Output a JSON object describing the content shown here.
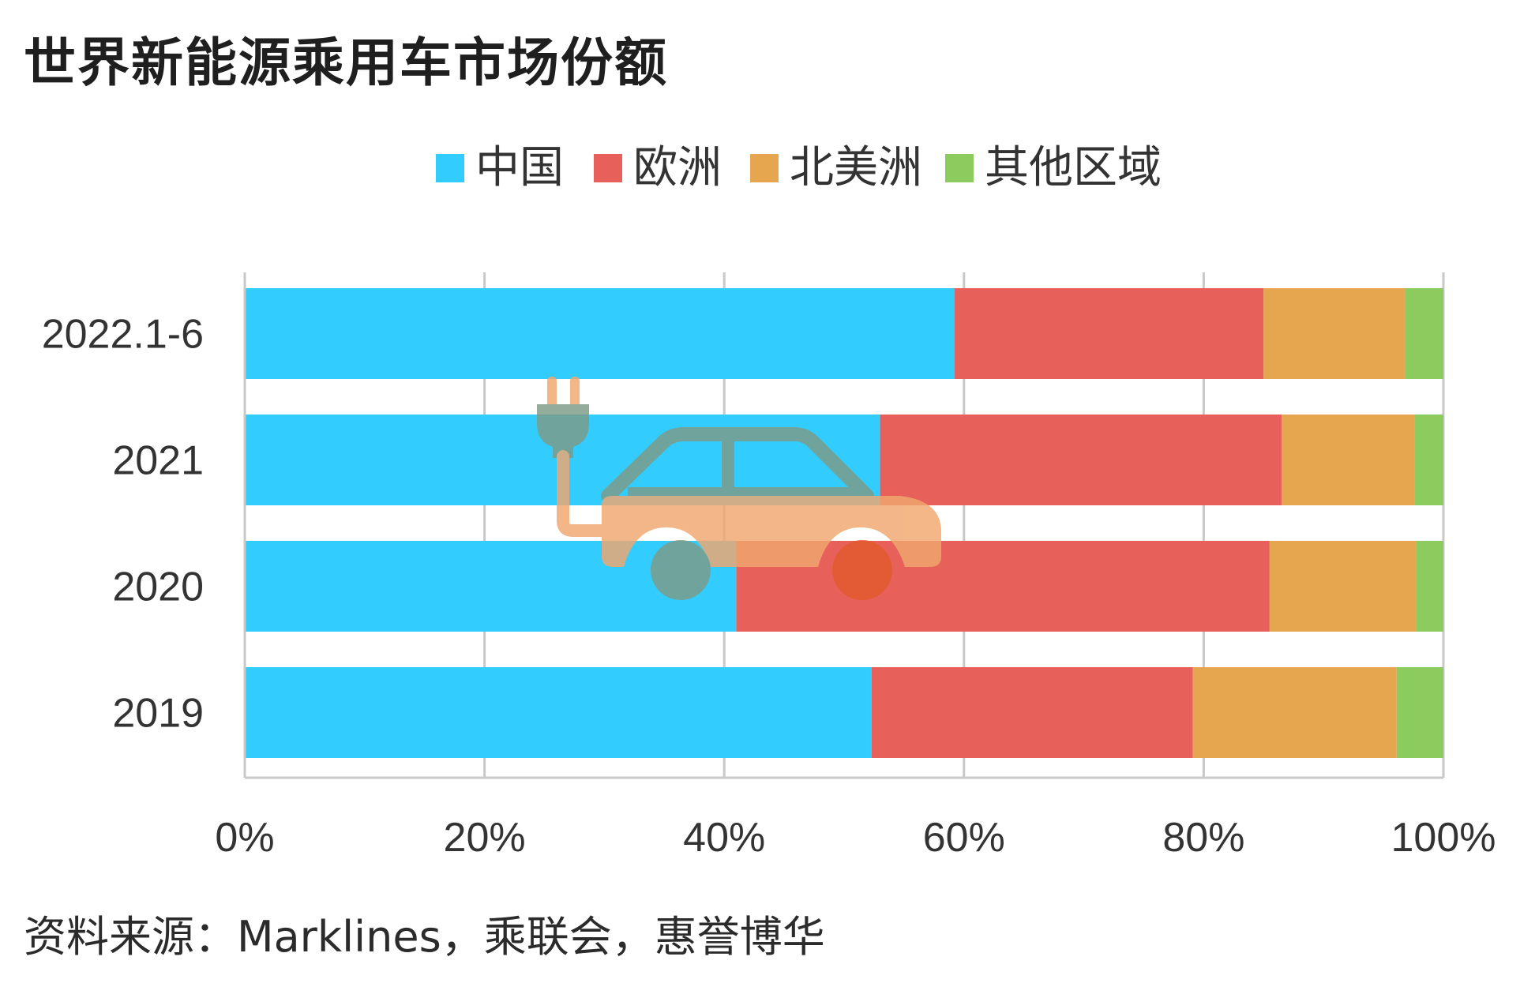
{
  "title": "世界新能源乘用车市场份额",
  "source": "资料来源：Marklines，乘联会，惠誉博华",
  "chart_data": {
    "type": "bar",
    "orientation": "horizontal",
    "stacked": "percent",
    "title": "世界新能源乘用车市场份额",
    "categories": [
      "2022.1-6",
      "2021",
      "2020",
      "2019"
    ],
    "series": [
      {
        "name": "中国",
        "color": "#33CCFF",
        "values": [
          59.2,
          53.0,
          41.0,
          52.3
        ]
      },
      {
        "name": "欧洲",
        "color": "#E8605A",
        "values": [
          25.8,
          33.5,
          44.5,
          26.8
        ]
      },
      {
        "name": "北美洲",
        "color": "#E6A54F",
        "values": [
          11.8,
          11.1,
          12.2,
          17.0
        ]
      },
      {
        "name": "其他区域",
        "color": "#8CCB5E",
        "values": [
          3.2,
          2.4,
          2.3,
          3.9
        ]
      }
    ],
    "x_ticks": [
      "0%",
      "20%",
      "40%",
      "60%",
      "80%",
      "100%"
    ],
    "xlim": [
      0,
      100
    ],
    "grid": true,
    "legend_position": "top-center"
  },
  "overlay": {
    "icon": "electric-car-plug-icon",
    "plug_color": "#7D9B86",
    "body_color": "#F0A76E"
  }
}
